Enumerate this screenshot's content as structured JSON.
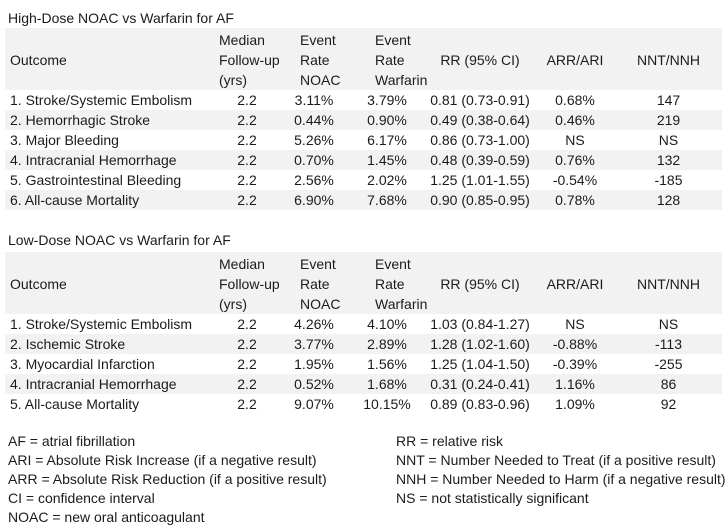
{
  "page": {
    "background": "#ffffff",
    "text_color": "#1b1b1b",
    "band_color": "#f2f2f2"
  },
  "tables": [
    {
      "title": "High-Dose NOAC vs Warfarin for AF",
      "columns": [
        {
          "label": "Outcome",
          "lines": [
            "Outcome"
          ]
        },
        {
          "label": "Median Follow-up (yrs)",
          "lines": [
            "Median",
            "Follow-up",
            "(yrs)"
          ]
        },
        {
          "label": "Event Rate NOAC",
          "lines": [
            "Event",
            "Rate",
            "NOAC"
          ]
        },
        {
          "label": "Event Rate Warfarin",
          "lines": [
            "Event",
            "Rate",
            "Warfarin"
          ]
        },
        {
          "label": "RR (95% CI)",
          "lines": [
            "RR (95% CI)"
          ]
        },
        {
          "label": "ARR/ARI",
          "lines": [
            "ARR/ARI"
          ]
        },
        {
          "label": "NNT/NNH",
          "lines": [
            "NNT/NNH"
          ]
        }
      ],
      "rows": [
        [
          "1. Stroke/Systemic Embolism",
          "2.2",
          "3.11%",
          "3.79%",
          "0.81 (0.73-0.91)",
          "0.68%",
          "147"
        ],
        [
          "2. Hemorrhagic Stroke",
          "2.2",
          "0.44%",
          "0.90%",
          "0.49 (0.38-0.64)",
          "0.46%",
          "219"
        ],
        [
          "3. Major Bleeding",
          "2.2",
          "5.26%",
          "6.17%",
          "0.86 (0.73-1.00)",
          "NS",
          "NS"
        ],
        [
          "4. Intracranial Hemorrhage",
          "2.2",
          "0.70%",
          "1.45%",
          "0.48 (0.39-0.59)",
          "0.76%",
          "132"
        ],
        [
          "5. Gastrointestinal Bleeding",
          "2.2",
          "2.56%",
          "2.02%",
          "1.25 (1.01-1.55)",
          "-0.54%",
          "-185"
        ],
        [
          "6. All-cause Mortality",
          "2.2",
          "6.90%",
          "7.68%",
          "0.90 (0.85-0.95)",
          "0.78%",
          "128"
        ]
      ]
    },
    {
      "title": "Low-Dose NOAC vs Warfarin for AF",
      "columns": [
        {
          "label": "Outcome",
          "lines": [
            "Outcome"
          ]
        },
        {
          "label": "Median Follow-up (yrs)",
          "lines": [
            "Median",
            "Follow-up",
            "(yrs)"
          ]
        },
        {
          "label": "Event Rate NOAC",
          "lines": [
            "Event",
            "Rate",
            "NOAC"
          ]
        },
        {
          "label": "Event Rate Warfarin",
          "lines": [
            "Event",
            "Rate",
            "Warfarin"
          ]
        },
        {
          "label": "RR (95% CI)",
          "lines": [
            "RR (95% CI)"
          ]
        },
        {
          "label": "ARR/ARI",
          "lines": [
            "ARR/ARI"
          ]
        },
        {
          "label": "NNT/NNH",
          "lines": [
            "NNT/NNH"
          ]
        }
      ],
      "rows": [
        [
          "1. Stroke/Systemic Embolism",
          "2.2",
          "4.26%",
          "4.10%",
          "1.03 (0.84-1.27)",
          "NS",
          "NS"
        ],
        [
          "2. Ischemic Stroke",
          "2.2",
          "3.77%",
          "2.89%",
          "1.28 (1.02-1.60)",
          "-0.88%",
          "-113"
        ],
        [
          "3. Myocardial Infarction",
          "2.2",
          "1.95%",
          "1.56%",
          "1.25 (1.04-1.50)",
          "-0.39%",
          "-255"
        ],
        [
          "4. Intracranial Hemorrhage",
          "2.2",
          "0.52%",
          "1.68%",
          "0.31 (0.24-0.41)",
          "1.16%",
          "86"
        ],
        [
          "5. All-cause Mortality",
          "2.2",
          "9.07%",
          "10.15%",
          "0.89 (0.83-0.96)",
          "1.09%",
          "92"
        ]
      ]
    }
  ],
  "footnotes": {
    "left": [
      "AF = atrial fibrillation",
      "ARI = Absolute Risk Increase (if a negative result)",
      "ARR = Absolute Risk Reduction (if a positive result)",
      "CI = confidence interval",
      "NOAC = new oral anticoagulant"
    ],
    "right": [
      "RR = relative risk",
      "NNT = Number Needed to Treat (if a positive result)",
      "NNH = Number Needed to Harm (if a negative result)",
      "NS = not statistically significant"
    ]
  }
}
